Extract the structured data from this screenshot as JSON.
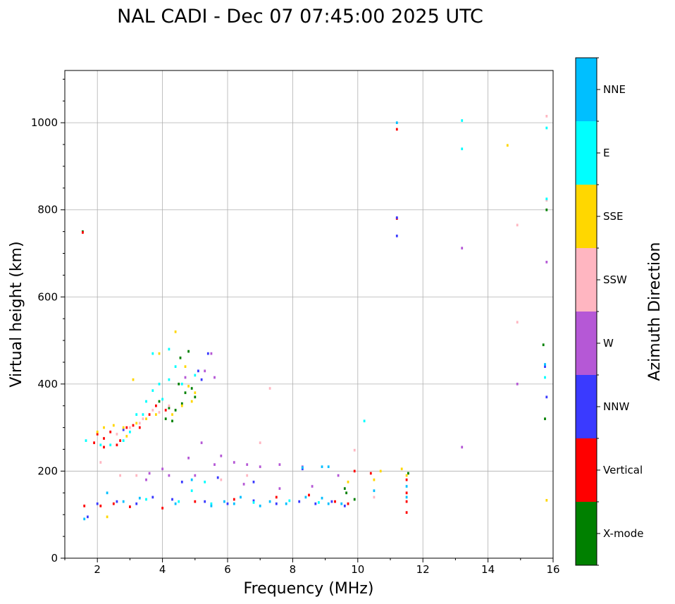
{
  "chart_data": {
    "type": "scatter",
    "title": "NAL CADI - Dec 07 07:45:00 2025 UTC",
    "xlabel": "Frequency (MHz)",
    "ylabel": "Virtual height (km)",
    "xlim": [
      1,
      16
    ],
    "ylim": [
      0,
      1120
    ],
    "xticks": [
      2,
      4,
      6,
      8,
      10,
      12,
      14,
      16
    ],
    "yticks": [
      0,
      200,
      400,
      600,
      800,
      1000
    ],
    "grid": true,
    "colorbar": {
      "label": "Azimuth Direction",
      "categories": [
        {
          "name": "X-mode",
          "color": "#008000"
        },
        {
          "name": "Vertical",
          "color": "#ff0000"
        },
        {
          "name": "NNW",
          "color": "#3a3aff"
        },
        {
          "name": "W",
          "color": "#b558d6"
        },
        {
          "name": "SSW",
          "color": "#ffb6c1"
        },
        {
          "name": "SSE",
          "color": "#ffd700"
        },
        {
          "name": "E",
          "color": "#00ffff"
        },
        {
          "name": "NNE",
          "color": "#00bfff"
        }
      ]
    },
    "point_width_mhz": 0.06,
    "point_height_km": 6,
    "series": [
      {
        "name": "X-mode",
        "points": [
          [
            1.55,
            750
          ],
          [
            4.5,
            400
          ],
          [
            4.7,
            380
          ],
          [
            4.2,
            345
          ],
          [
            4.6,
            355
          ],
          [
            4.1,
            320
          ],
          [
            4.3,
            315
          ],
          [
            5.0,
            370
          ],
          [
            4.8,
            475
          ],
          [
            4.55,
            460
          ],
          [
            9.65,
            150
          ],
          [
            9.9,
            135
          ],
          [
            9.6,
            160
          ],
          [
            11.55,
            195
          ],
          [
            15.8,
            800
          ],
          [
            15.7,
            490
          ],
          [
            15.75,
            320
          ],
          [
            4.9,
            390
          ],
          [
            3.9,
            360
          ],
          [
            4.4,
            340
          ]
        ]
      },
      {
        "name": "Vertical",
        "points": [
          [
            1.55,
            748
          ],
          [
            1.6,
            120
          ],
          [
            1.9,
            265
          ],
          [
            2.0,
            285
          ],
          [
            2.2,
            275
          ],
          [
            2.4,
            290
          ],
          [
            2.6,
            260
          ],
          [
            2.9,
            300
          ],
          [
            3.1,
            305
          ],
          [
            3.3,
            300
          ],
          [
            3.6,
            330
          ],
          [
            4.1,
            340
          ],
          [
            3.8,
            350
          ],
          [
            2.1,
            120
          ],
          [
            2.5,
            125
          ],
          [
            3.0,
            118
          ],
          [
            4.0,
            115
          ],
          [
            5.0,
            130
          ],
          [
            6.2,
            135
          ],
          [
            7.5,
            140
          ],
          [
            8.5,
            145
          ],
          [
            9.3,
            130
          ],
          [
            9.9,
            200
          ],
          [
            10.4,
            195
          ],
          [
            11.2,
            985
          ],
          [
            11.2,
            780
          ],
          [
            11.5,
            105
          ],
          [
            11.5,
            130
          ],
          [
            11.5,
            150
          ],
          [
            11.5,
            180
          ],
          [
            9.7,
            125
          ],
          [
            2.2,
            255
          ],
          [
            2.7,
            270
          ]
        ]
      },
      {
        "name": "NNW",
        "points": [
          [
            2.0,
            125
          ],
          [
            2.6,
            130
          ],
          [
            3.2,
            125
          ],
          [
            3.7,
            140
          ],
          [
            4.3,
            135
          ],
          [
            5.3,
            130
          ],
          [
            6.0,
            125
          ],
          [
            6.8,
            132
          ],
          [
            7.5,
            125
          ],
          [
            8.2,
            130
          ],
          [
            8.7,
            125
          ],
          [
            9.2,
            130
          ],
          [
            11.2,
            740
          ],
          [
            11.2,
            782
          ],
          [
            15.75,
            440
          ],
          [
            15.8,
            370
          ],
          [
            5.4,
            470
          ],
          [
            5.1,
            430
          ],
          [
            5.7,
            185
          ],
          [
            6.8,
            175
          ],
          [
            4.6,
            175
          ],
          [
            2.8,
            295
          ],
          [
            5.2,
            410
          ],
          [
            9.6,
            120
          ],
          [
            1.7,
            95
          ],
          [
            8.3,
            205
          ]
        ]
      },
      {
        "name": "W",
        "points": [
          [
            3.5,
            180
          ],
          [
            4.2,
            190
          ],
          [
            4.0,
            205
          ],
          [
            3.6,
            195
          ],
          [
            5.0,
            190
          ],
          [
            5.6,
            215
          ],
          [
            6.2,
            220
          ],
          [
            6.6,
            215
          ],
          [
            7.0,
            210
          ],
          [
            7.6,
            215
          ],
          [
            8.3,
            210
          ],
          [
            4.8,
            230
          ],
          [
            5.2,
            265
          ],
          [
            5.8,
            235
          ],
          [
            6.5,
            170
          ],
          [
            7.6,
            160
          ],
          [
            8.6,
            165
          ],
          [
            9.4,
            190
          ],
          [
            13.2,
            712
          ],
          [
            13.2,
            255
          ],
          [
            14.9,
            400
          ],
          [
            15.8,
            680
          ],
          [
            5.3,
            430
          ],
          [
            5.5,
            470
          ],
          [
            4.7,
            415
          ],
          [
            5.6,
            415
          ]
        ]
      },
      {
        "name": "SSW",
        "points": [
          [
            2.1,
            220
          ],
          [
            2.6,
            285
          ],
          [
            3.0,
            300
          ],
          [
            3.4,
            320
          ],
          [
            3.9,
            335
          ],
          [
            4.2,
            350
          ],
          [
            2.7,
            190
          ],
          [
            3.2,
            190
          ],
          [
            5.8,
            180
          ],
          [
            6.6,
            190
          ],
          [
            7.0,
            265
          ],
          [
            7.3,
            390
          ],
          [
            9.9,
            248
          ],
          [
            10.5,
            140
          ],
          [
            14.9,
            765
          ],
          [
            14.9,
            542
          ],
          [
            15.8,
            1015
          ],
          [
            15.8,
            822
          ],
          [
            3.7,
            340
          ],
          [
            3.3,
            310
          ]
        ]
      },
      {
        "name": "SSE",
        "points": [
          [
            2.2,
            300
          ],
          [
            2.5,
            305
          ],
          [
            2.8,
            300
          ],
          [
            3.2,
            310
          ],
          [
            3.5,
            320
          ],
          [
            3.8,
            330
          ],
          [
            4.3,
            330
          ],
          [
            4.6,
            350
          ],
          [
            4.9,
            360
          ],
          [
            5.0,
            380
          ],
          [
            4.8,
            395
          ],
          [
            3.9,
            470
          ],
          [
            3.1,
            410
          ],
          [
            4.7,
            440
          ],
          [
            2.3,
            95
          ],
          [
            4.4,
            520
          ],
          [
            9.7,
            175
          ],
          [
            10.5,
            180
          ],
          [
            10.7,
            200
          ],
          [
            11.35,
            205
          ],
          [
            11.5,
            190
          ],
          [
            14.6,
            948
          ],
          [
            15.8,
            133
          ],
          [
            2.0,
            290
          ],
          [
            2.9,
            280
          ]
        ]
      },
      {
        "name": "E",
        "points": [
          [
            1.65,
            270
          ],
          [
            2.1,
            260
          ],
          [
            2.8,
            270
          ],
          [
            3.0,
            290
          ],
          [
            3.5,
            360
          ],
          [
            3.7,
            385
          ],
          [
            3.9,
            400
          ],
          [
            4.2,
            410
          ],
          [
            4.4,
            440
          ],
          [
            4.6,
            400
          ],
          [
            5.0,
            420
          ],
          [
            3.4,
            330
          ],
          [
            4.0,
            365
          ],
          [
            3.2,
            330
          ],
          [
            2.4,
            260
          ],
          [
            3.7,
            470
          ],
          [
            4.2,
            480
          ],
          [
            10.2,
            315
          ],
          [
            13.2,
            1005
          ],
          [
            13.2,
            940
          ],
          [
            15.8,
            988
          ],
          [
            15.8,
            825
          ],
          [
            15.75,
            415
          ],
          [
            4.5,
            130
          ],
          [
            3.5,
            135
          ],
          [
            5.5,
            125
          ],
          [
            6.8,
            128
          ],
          [
            7.9,
            132
          ],
          [
            8.8,
            128
          ],
          [
            4.9,
            155
          ],
          [
            5.3,
            175
          ]
        ]
      },
      {
        "name": "NNE",
        "points": [
          [
            1.6,
            90
          ],
          [
            2.3,
            150
          ],
          [
            2.8,
            130
          ],
          [
            3.3,
            138
          ],
          [
            4.4,
            125
          ],
          [
            5.5,
            120
          ],
          [
            6.2,
            125
          ],
          [
            7.0,
            120
          ],
          [
            7.8,
            125
          ],
          [
            8.4,
            140
          ],
          [
            8.9,
            138
          ],
          [
            9.1,
            125
          ],
          [
            9.5,
            125
          ],
          [
            8.3,
            208
          ],
          [
            8.9,
            210
          ],
          [
            9.1,
            210
          ],
          [
            11.2,
            1000
          ],
          [
            10.5,
            155
          ],
          [
            11.5,
            140
          ],
          [
            11.5,
            165
          ],
          [
            15.75,
            445
          ],
          [
            4.9,
            180
          ],
          [
            6.4,
            140
          ],
          [
            7.3,
            130
          ],
          [
            5.9,
            130
          ]
        ]
      }
    ]
  }
}
